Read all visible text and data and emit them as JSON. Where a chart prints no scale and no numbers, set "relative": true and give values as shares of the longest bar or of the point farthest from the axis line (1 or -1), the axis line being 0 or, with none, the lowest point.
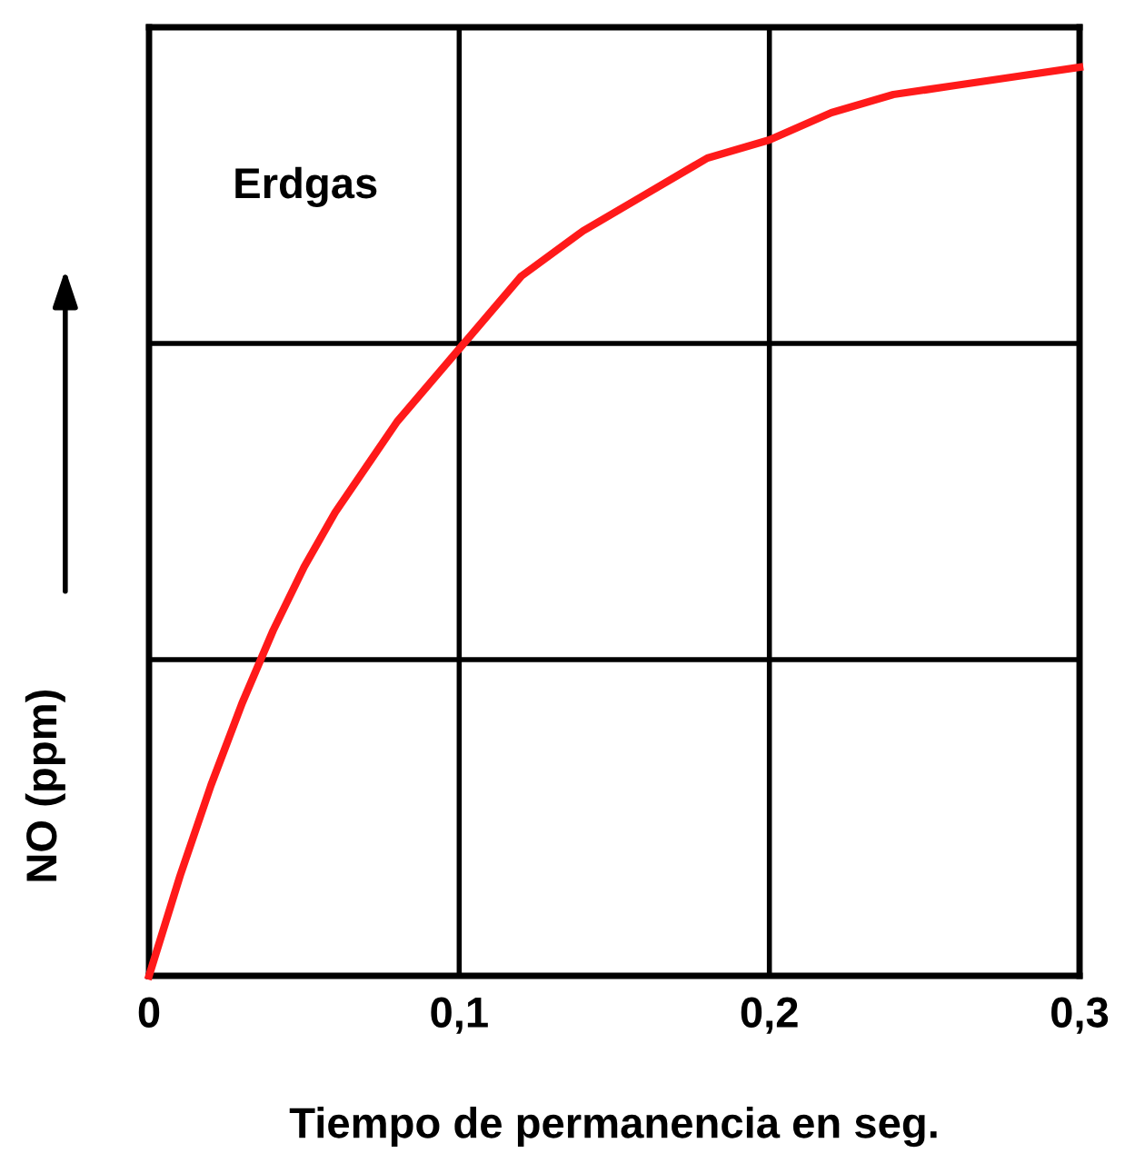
{
  "chart_data": {
    "type": "line",
    "relative": true,
    "xlabel": "Tiempo de permanencia en seg.",
    "ylabel": "NO (ppm)",
    "annotations": [
      "Erdgas"
    ],
    "xlim": [
      0,
      0.3
    ],
    "xticks": [
      0,
      {
        "value": 0.1,
        "label": "0,1"
      },
      {
        "value": 0.2,
        "label": "0,2"
      },
      {
        "value": 0.3,
        "label": "0,3"
      }
    ],
    "grid": true,
    "legend": false,
    "marker": "none",
    "line_style": "solid",
    "series": [
      {
        "color": "#ff1a1a",
        "x": [
          0,
          0.01,
          0.02,
          0.03,
          0.04,
          0.05,
          0.06,
          0.08,
          0.1,
          0.12,
          0.14,
          0.16,
          0.18,
          0.2,
          0.22,
          0.24,
          0.26,
          0.28,
          0.3
        ],
        "values": [
          0,
          0.11,
          0.21,
          0.3,
          0.38,
          0.45,
          0.51,
          0.61,
          0.69,
          0.77,
          0.82,
          0.86,
          0.9,
          0.92,
          0.95,
          0.97,
          0.98,
          0.99,
          1.0
        ]
      }
    ]
  }
}
